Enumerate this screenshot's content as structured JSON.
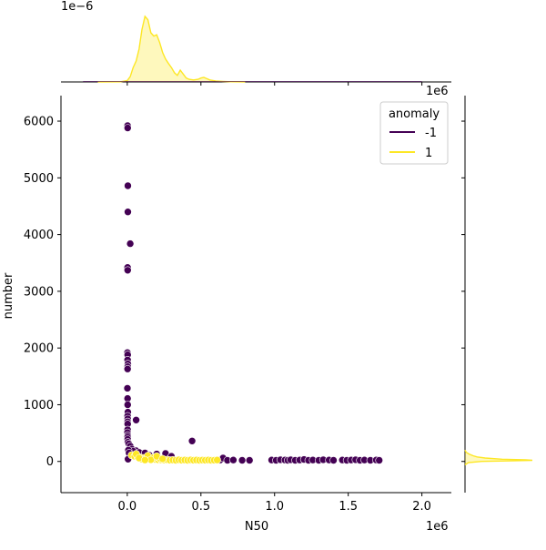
{
  "colors": {
    "anomaly_neg": "#440154",
    "anomaly_pos": "#fde725",
    "kde_fill_pos": "#fde72566",
    "axis": "#000000",
    "background": "#ffffff"
  },
  "chart_data": {
    "type": "scatter",
    "kind": "jointplot",
    "xlabel": "N50",
    "ylabel": "number",
    "x_offset_label": "1e6",
    "top_marginal_y_offset_label": "1e−6",
    "right_marginal_x_offset_label": "1e6",
    "xlim": [
      -450000,
      2200000
    ],
    "ylim": [
      -550,
      6450
    ],
    "xticks": [
      0,
      500000,
      1000000,
      1500000,
      2000000
    ],
    "xtick_labels": [
      "0.0",
      "0.5",
      "1.0",
      "1.5",
      "2.0"
    ],
    "yticks": [
      0,
      1000,
      2000,
      3000,
      4000,
      5000,
      6000
    ],
    "ytick_labels": [
      "0",
      "1000",
      "2000",
      "3000",
      "4000",
      "5000",
      "6000"
    ],
    "legend": {
      "title": "anomaly",
      "placement": "top-right",
      "entries": [
        "-1",
        "1"
      ]
    },
    "series": [
      {
        "name": "-1",
        "points": [
          [
            2000,
            5920
          ],
          [
            3000,
            5880
          ],
          [
            4000,
            4860
          ],
          [
            4000,
            4400
          ],
          [
            20000,
            3840
          ],
          [
            2000,
            3420
          ],
          [
            3000,
            3370
          ],
          [
            1000,
            1920
          ],
          [
            3000,
            1880
          ],
          [
            2000,
            1790
          ],
          [
            4000,
            1720
          ],
          [
            3000,
            1670
          ],
          [
            2000,
            1630
          ],
          [
            1000,
            1290
          ],
          [
            2000,
            1110
          ],
          [
            3000,
            1000
          ],
          [
            4000,
            870
          ],
          [
            2000,
            800
          ],
          [
            3000,
            750
          ],
          [
            60000,
            730
          ],
          [
            2000,
            700
          ],
          [
            3000,
            660
          ],
          [
            2000,
            560
          ],
          [
            1000,
            510
          ],
          [
            3000,
            460
          ],
          [
            2000,
            430
          ],
          [
            3000,
            390
          ],
          [
            4000,
            340
          ],
          [
            10000,
            310
          ],
          [
            20000,
            270
          ],
          [
            440000,
            360
          ],
          [
            30000,
            220
          ],
          [
            60000,
            190
          ],
          [
            80000,
            160
          ],
          [
            120000,
            150
          ],
          [
            200000,
            130
          ],
          [
            260000,
            140
          ],
          [
            300000,
            90
          ],
          [
            150000,
            110
          ],
          [
            40000,
            180
          ],
          [
            8000,
            200
          ],
          [
            12000,
            150
          ],
          [
            5000,
            40
          ],
          [
            630000,
            25
          ],
          [
            650000,
            60
          ],
          [
            680000,
            20
          ],
          [
            720000,
            25
          ],
          [
            780000,
            20
          ],
          [
            830000,
            20
          ],
          [
            980000,
            25
          ],
          [
            1010000,
            20
          ],
          [
            1040000,
            30
          ],
          [
            1070000,
            25
          ],
          [
            1090000,
            20
          ],
          [
            1110000,
            30
          ],
          [
            1140000,
            20
          ],
          [
            1170000,
            25
          ],
          [
            1200000,
            35
          ],
          [
            1230000,
            20
          ],
          [
            1260000,
            25
          ],
          [
            1300000,
            20
          ],
          [
            1330000,
            30
          ],
          [
            1370000,
            25
          ],
          [
            1400000,
            20
          ],
          [
            1460000,
            25
          ],
          [
            1490000,
            20
          ],
          [
            1520000,
            25
          ],
          [
            1550000,
            30
          ],
          [
            1580000,
            20
          ],
          [
            1610000,
            25
          ],
          [
            1650000,
            20
          ],
          [
            1690000,
            25
          ],
          [
            1710000,
            20
          ]
        ]
      },
      {
        "name": "1",
        "points": [
          [
            30000,
            110
          ],
          [
            50000,
            90
          ],
          [
            70000,
            80
          ],
          [
            90000,
            70
          ],
          [
            110000,
            60
          ],
          [
            130000,
            50
          ],
          [
            150000,
            45
          ],
          [
            170000,
            40
          ],
          [
            190000,
            35
          ],
          [
            210000,
            30
          ],
          [
            230000,
            28
          ],
          [
            250000,
            25
          ],
          [
            270000,
            30
          ],
          [
            290000,
            22
          ],
          [
            310000,
            25
          ],
          [
            330000,
            20
          ],
          [
            350000,
            28
          ],
          [
            370000,
            22
          ],
          [
            390000,
            25
          ],
          [
            410000,
            20
          ],
          [
            430000,
            26
          ],
          [
            450000,
            22
          ],
          [
            470000,
            24
          ],
          [
            490000,
            20
          ],
          [
            510000,
            23
          ],
          [
            530000,
            21
          ],
          [
            550000,
            24
          ],
          [
            570000,
            20
          ],
          [
            590000,
            22
          ],
          [
            610000,
            25
          ],
          [
            100000,
            40
          ],
          [
            140000,
            100
          ],
          [
            180000,
            70
          ],
          [
            220000,
            55
          ],
          [
            60000,
            130
          ],
          [
            80000,
            60
          ],
          [
            160000,
            30
          ],
          [
            200000,
            90
          ],
          [
            240000,
            45
          ],
          [
            120000,
            25
          ]
        ]
      }
    ],
    "top_marginal": {
      "series": "1",
      "type": "kde",
      "x": [
        -200000,
        -50000,
        0,
        20000,
        40000,
        60000,
        80000,
        100000,
        120000,
        140000,
        160000,
        180000,
        200000,
        220000,
        240000,
        260000,
        280000,
        300000,
        320000,
        340000,
        360000,
        380000,
        400000,
        420000,
        450000,
        480000,
        500000,
        520000,
        540000,
        560000,
        600000,
        650000,
        700000,
        800000
      ],
      "density": [
        0,
        0.002,
        0.02,
        0.08,
        0.22,
        0.32,
        0.5,
        0.8,
        1.0,
        0.95,
        0.75,
        0.7,
        0.72,
        0.6,
        0.45,
        0.35,
        0.28,
        0.22,
        0.14,
        0.1,
        0.18,
        0.12,
        0.06,
        0.04,
        0.03,
        0.04,
        0.06,
        0.07,
        0.05,
        0.03,
        0.015,
        0.008,
        0.003,
        0
      ]
    },
    "right_marginal": {
      "series": "1",
      "type": "kde",
      "y": [
        -60,
        -20,
        0,
        10,
        20,
        30,
        40,
        60,
        80,
        100,
        130,
        160,
        200
      ],
      "density": [
        0,
        0.05,
        0.25,
        0.7,
        1.0,
        0.9,
        0.55,
        0.3,
        0.18,
        0.12,
        0.06,
        0.02,
        0
      ]
    }
  }
}
